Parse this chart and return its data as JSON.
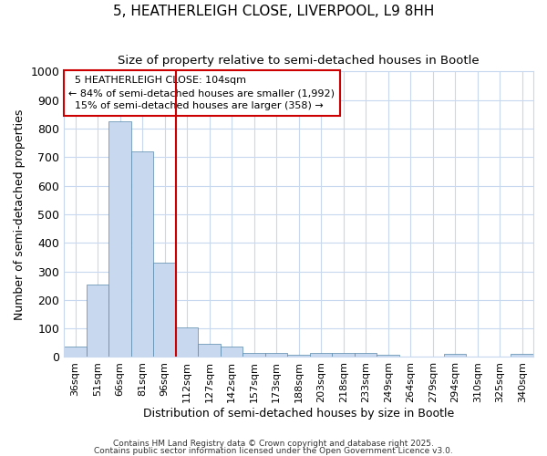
{
  "title": "5, HEATHERLEIGH CLOSE, LIVERPOOL, L9 8HH",
  "subtitle": "Size of property relative to semi-detached houses in Bootle",
  "xlabel": "Distribution of semi-detached houses by size in Bootle",
  "ylabel": "Number of semi-detached properties",
  "bar_labels": [
    "36sqm",
    "51sqm",
    "66sqm",
    "81sqm",
    "96sqm",
    "112sqm",
    "127sqm",
    "142sqm",
    "157sqm",
    "173sqm",
    "188sqm",
    "203sqm",
    "218sqm",
    "233sqm",
    "249sqm",
    "264sqm",
    "279sqm",
    "294sqm",
    "310sqm",
    "325sqm",
    "340sqm"
  ],
  "bar_values": [
    36,
    255,
    825,
    720,
    330,
    103,
    47,
    37,
    15,
    15,
    8,
    13,
    15,
    13,
    8,
    0,
    0,
    10,
    0,
    0,
    10
  ],
  "bar_color": "#c8d8ee",
  "bar_edge_color": "#5588aa",
  "grid_color": "#c8d8ee",
  "background_color": "#ffffff",
  "plot_bg_color": "#ffffff",
  "property_label": "5 HEATHERLEIGH CLOSE: 104sqm",
  "pct_smaller": 84,
  "count_smaller": 1992,
  "pct_larger": 15,
  "count_larger": 358,
  "vline_color": "#cc0000",
  "annotation_box_color": "#cc0000",
  "ylim": [
    0,
    1000
  ],
  "yticks": [
    0,
    100,
    200,
    300,
    400,
    500,
    600,
    700,
    800,
    900,
    1000
  ],
  "footnote1": "Contains HM Land Registry data © Crown copyright and database right 2025.",
  "footnote2": "Contains public sector information licensed under the Open Government Licence v3.0.",
  "vline_x_index": 5
}
